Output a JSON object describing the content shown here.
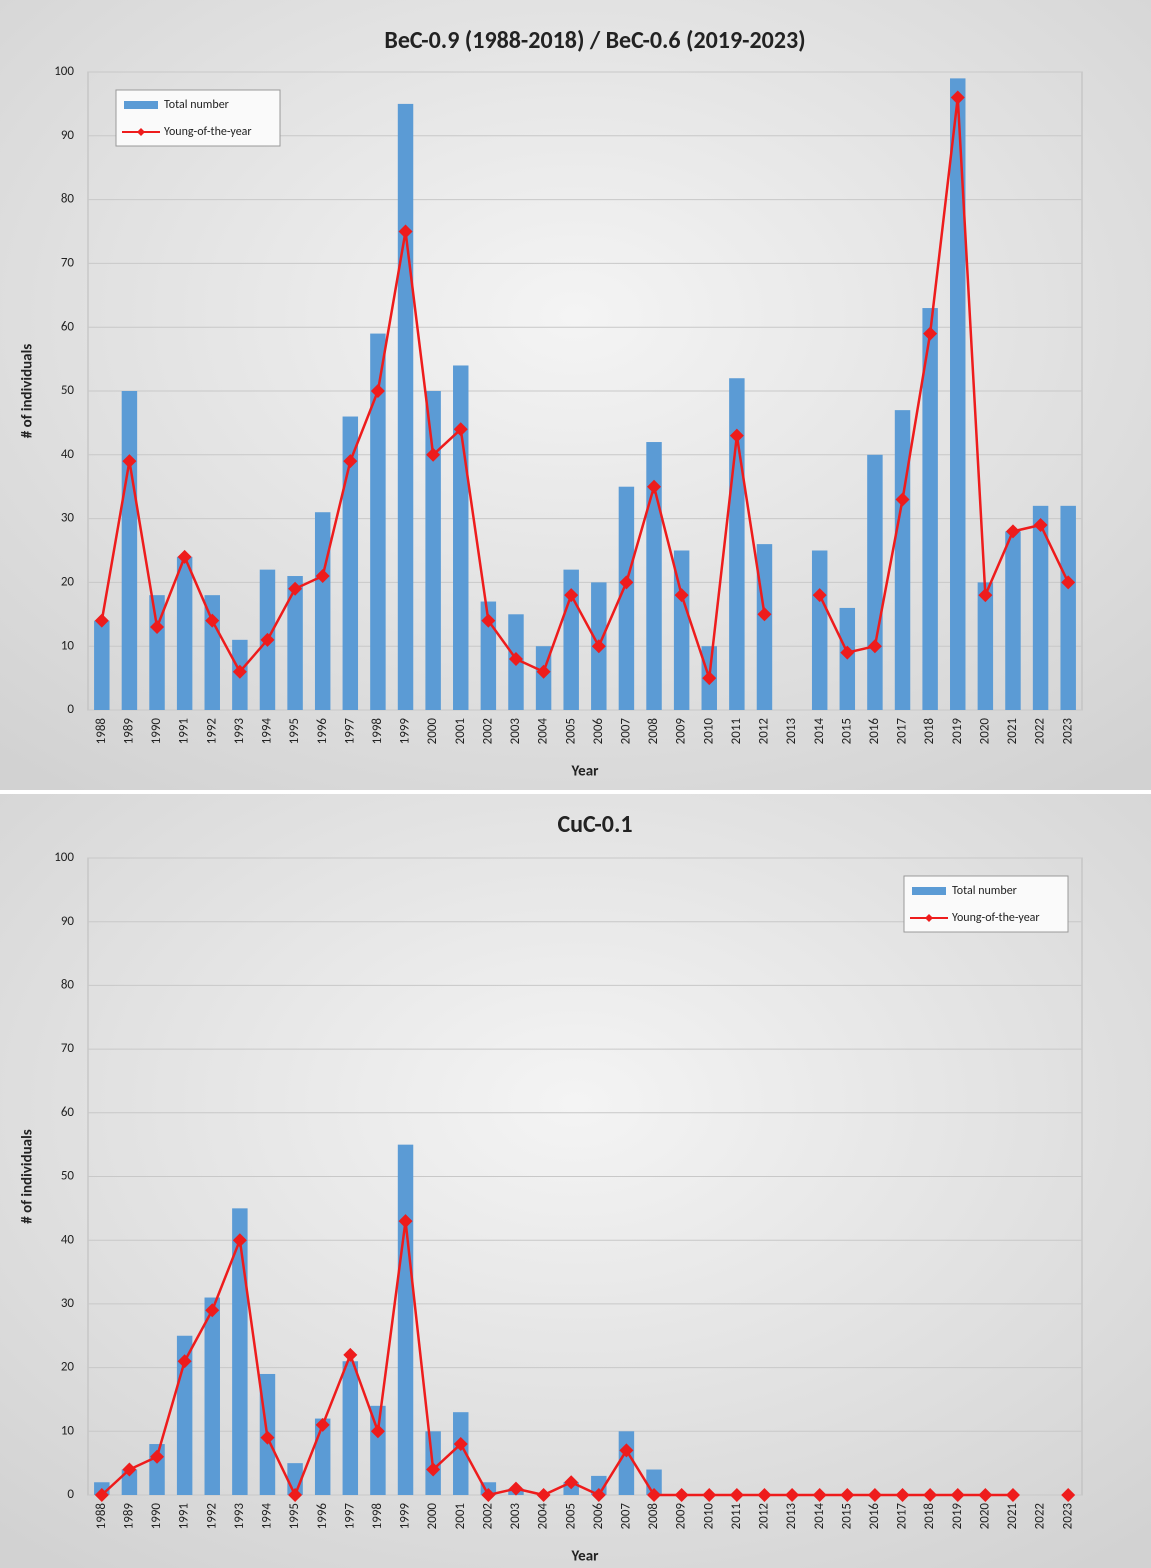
{
  "chart_data": [
    {
      "type": "bar",
      "title": "BeC-0.9 (1988-2018) / BeC-0.6 (2019-2023)",
      "x_label": "Year",
      "y_label": "# of individuals",
      "categories": [
        "1988",
        "1989",
        "1990",
        "1991",
        "1992",
        "1993",
        "1994",
        "1995",
        "1996",
        "1997",
        "1998",
        "1999",
        "2000",
        "2001",
        "2002",
        "2003",
        "2004",
        "2005",
        "2006",
        "2007",
        "2008",
        "2009",
        "2010",
        "2011",
        "2012",
        "2013",
        "2014",
        "2015",
        "2016",
        "2017",
        "2018",
        "2019",
        "2020",
        "2021",
        "2022",
        "2023"
      ],
      "series": [
        {
          "name": "Total number",
          "type": "bar",
          "color": "#5b9bd5",
          "values": [
            14,
            50,
            18,
            24,
            18,
            11,
            22,
            21,
            31,
            46,
            59,
            95,
            50,
            54,
            17,
            15,
            10,
            22,
            20,
            35,
            42,
            25,
            10,
            52,
            26,
            null,
            25,
            16,
            40,
            47,
            63,
            99,
            20,
            28,
            32,
            32
          ]
        },
        {
          "name": "Young-of-the-year",
          "type": "line",
          "color": "#ee1c1c",
          "values": [
            14,
            39,
            13,
            24,
            14,
            6,
            11,
            19,
            21,
            39,
            50,
            75,
            40,
            44,
            14,
            8,
            6,
            18,
            10,
            20,
            35,
            18,
            5,
            43,
            15,
            null,
            18,
            9,
            10,
            33,
            59,
            96,
            18,
            28,
            29,
            20
          ]
        }
      ],
      "ylim": [
        0,
        100
      ],
      "yticks": [
        0,
        10,
        20,
        30,
        40,
        50,
        60,
        70,
        80,
        90,
        100
      ],
      "grid": true,
      "legend": "upper left"
    },
    {
      "type": "bar",
      "title": "CuC-0.1",
      "x_label": "Year",
      "y_label": "# of individuals",
      "categories": [
        "1988",
        "1989",
        "1990",
        "1991",
        "1992",
        "1993",
        "1994",
        "1995",
        "1996",
        "1997",
        "1998",
        "1999",
        "2000",
        "2001",
        "2002",
        "2003",
        "2004",
        "2005",
        "2006",
        "2007",
        "2008",
        "2009",
        "2010",
        "2011",
        "2012",
        "2013",
        "2014",
        "2015",
        "2016",
        "2017",
        "2018",
        "2019",
        "2020",
        "2021",
        "2022",
        "2023"
      ],
      "series": [
        {
          "name": "Total number",
          "type": "bar",
          "color": "#5b9bd5",
          "values": [
            2,
            4,
            8,
            25,
            31,
            45,
            19,
            5,
            12,
            21,
            14,
            55,
            10,
            13,
            2,
            1,
            0,
            2,
            3,
            10,
            4,
            0,
            0,
            0,
            0,
            0,
            0,
            0,
            0,
            0,
            0,
            0,
            0,
            0,
            null,
            0
          ]
        },
        {
          "name": "Young-of-the-year",
          "type": "line",
          "color": "#ee1c1c",
          "values": [
            0,
            4,
            6,
            21,
            29,
            40,
            9,
            0,
            11,
            22,
            10,
            43,
            4,
            8,
            0,
            1,
            0,
            2,
            0,
            7,
            0,
            0,
            0,
            0,
            0,
            0,
            0,
            0,
            0,
            0,
            0,
            0,
            0,
            0,
            null,
            0
          ]
        }
      ],
      "ylim": [
        0,
        100
      ],
      "yticks": [
        0,
        10,
        20,
        30,
        40,
        50,
        60,
        70,
        80,
        90,
        100
      ],
      "grid": true,
      "legend": "upper right"
    }
  ]
}
